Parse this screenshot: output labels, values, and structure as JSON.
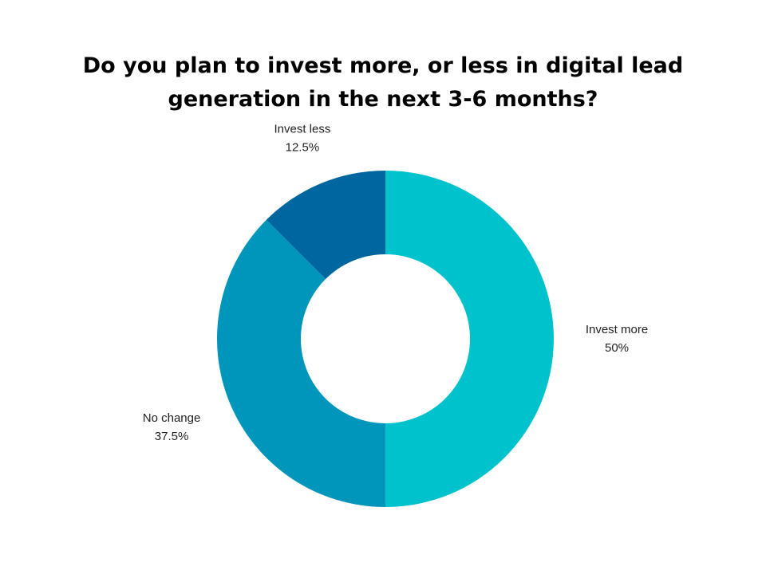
{
  "chart_data": {
    "type": "donut",
    "title": "Do you plan to invest more, or less in digital lead generation in the next 3-6 months?",
    "categories": [
      "Invest more",
      "No change",
      "Invest less"
    ],
    "values": [
      50,
      37.5,
      12.5
    ],
    "value_labels": [
      "50%",
      "37.5%",
      "12.5%"
    ],
    "colors": [
      "#00c2cc",
      "#0096bb",
      "#0066a0"
    ]
  }
}
